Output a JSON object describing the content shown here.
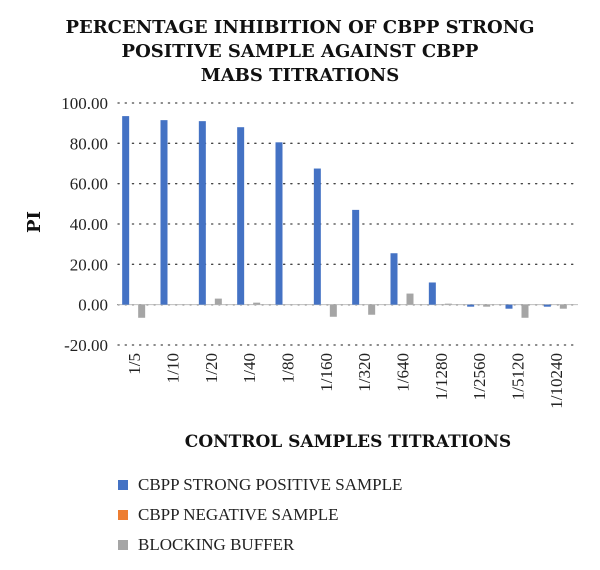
{
  "chart_data": {
    "type": "bar",
    "title": [
      "PERCENTAGE INHIBITION OF CBPP STRONG",
      "POSITIVE SAMPLE AGAINST CBPP",
      "MABS TITRATIONS"
    ],
    "xlabel": "CONTROL SAMPLES TITRATIONS",
    "ylabel": "PI",
    "ylim": [
      -20,
      100
    ],
    "yticks": [
      "100.00",
      "80.00",
      "60.00",
      "40.00",
      "20.00",
      "0.00",
      "-20.00"
    ],
    "grid": "horizontal dotted",
    "legend_position": "bottom",
    "categories": [
      "1/5",
      "1/10",
      "1/20",
      "1/40",
      "1/80",
      "1/160",
      "1/320",
      "1/640",
      "1/1280",
      "1/2560",
      "1/5120",
      "1/10240"
    ],
    "series": [
      {
        "name": "CBPP STRONG POSITIVE SAMPLE",
        "color": "#4472c4",
        "values": [
          93.5,
          91.5,
          91.0,
          88.0,
          80.5,
          67.5,
          47.0,
          25.5,
          11.0,
          -1.0,
          -2.0,
          -1.0
        ]
      },
      {
        "name": "CBPP NEGATIVE SAMPLE",
        "color": "#ed7d31",
        "values": [
          0,
          0,
          0,
          0,
          0,
          0,
          0,
          0,
          0,
          0,
          0,
          0
        ]
      },
      {
        "name": "BLOCKING BUFFER",
        "color": "#a5a5a5",
        "values": [
          -6.5,
          0,
          3.0,
          1.0,
          0,
          -6.0,
          -5.0,
          5.5,
          0.5,
          -1.0,
          -6.5,
          -2.0
        ]
      }
    ]
  }
}
